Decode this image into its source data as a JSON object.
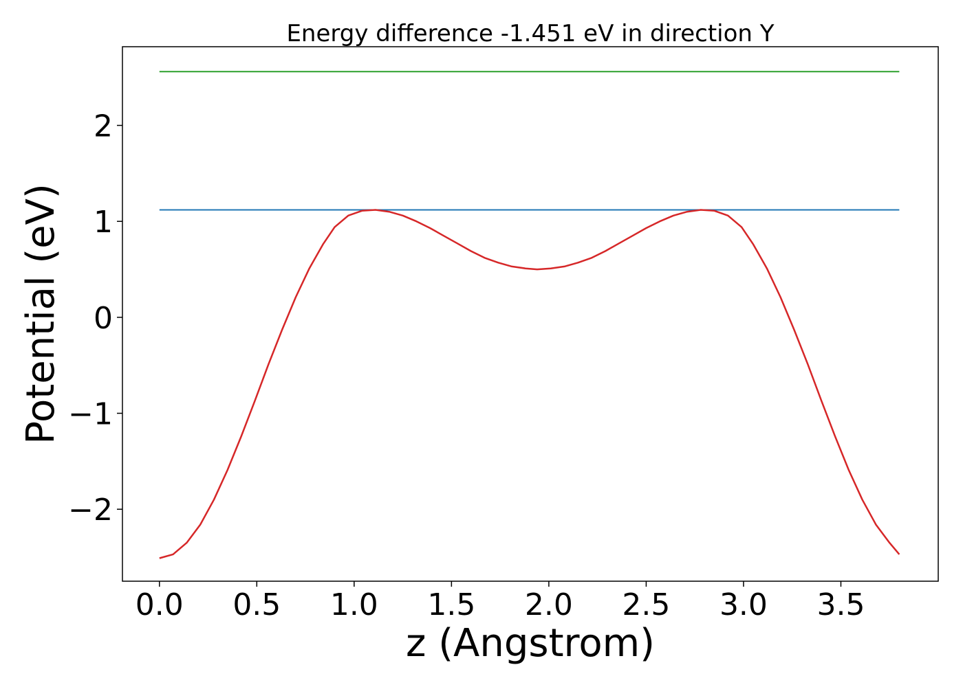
{
  "chart_data": {
    "type": "line",
    "title": "Energy difference -1.451 eV in direction Y",
    "xlabel": "z (Angstrom)",
    "ylabel": "Potential (eV)",
    "xlim": [
      -0.19,
      4.0
    ],
    "ylim": [
      -2.75,
      2.82
    ],
    "x_ticks": [
      0.0,
      0.5,
      1.0,
      1.5,
      2.0,
      2.5,
      3.0,
      3.5
    ],
    "x_tick_labels": [
      "0.0",
      "0.5",
      "1.0",
      "1.5",
      "2.0",
      "2.5",
      "3.0",
      "3.5"
    ],
    "y_ticks": [
      -2,
      -1,
      0,
      1,
      2
    ],
    "y_tick_labels": [
      "−2",
      "−1",
      "0",
      "1",
      "2"
    ],
    "grid": false,
    "series": [
      {
        "color": "#2ca02c",
        "x": [
          0.0,
          3.8
        ],
        "y": [
          2.56,
          2.56
        ]
      },
      {
        "color": "#1f77b4",
        "x": [
          0.0,
          3.8
        ],
        "y": [
          1.12,
          1.12
        ]
      },
      {
        "color": "#d62728",
        "x": [
          0.0,
          0.07,
          0.14,
          0.21,
          0.28,
          0.35,
          0.42,
          0.49,
          0.56,
          0.63,
          0.7,
          0.77,
          0.84,
          0.9,
          0.97,
          1.04,
          1.11,
          1.18,
          1.25,
          1.32,
          1.39,
          1.46,
          1.53,
          1.6,
          1.67,
          1.74,
          1.81,
          1.88,
          1.94,
          2.01,
          2.08,
          2.15,
          2.22,
          2.29,
          2.36,
          2.43,
          2.5,
          2.57,
          2.64,
          2.71,
          2.78,
          2.85,
          2.92,
          2.99,
          3.05,
          3.12,
          3.19,
          3.26,
          3.33,
          3.4,
          3.47,
          3.54,
          3.61,
          3.68,
          3.75,
          3.8
        ],
        "y": [
          -2.51,
          -2.47,
          -2.35,
          -2.16,
          -1.9,
          -1.59,
          -1.24,
          -0.87,
          -0.49,
          -0.13,
          0.21,
          0.51,
          0.76,
          0.94,
          1.06,
          1.11,
          1.12,
          1.1,
          1.06,
          1.0,
          0.93,
          0.85,
          0.77,
          0.69,
          0.62,
          0.57,
          0.53,
          0.51,
          0.5,
          0.51,
          0.53,
          0.57,
          0.62,
          0.69,
          0.77,
          0.85,
          0.93,
          1.0,
          1.06,
          1.1,
          1.12,
          1.11,
          1.06,
          0.94,
          0.76,
          0.51,
          0.21,
          -0.13,
          -0.49,
          -0.87,
          -1.24,
          -1.59,
          -1.9,
          -2.16,
          -2.35,
          -2.47
        ]
      }
    ]
  }
}
